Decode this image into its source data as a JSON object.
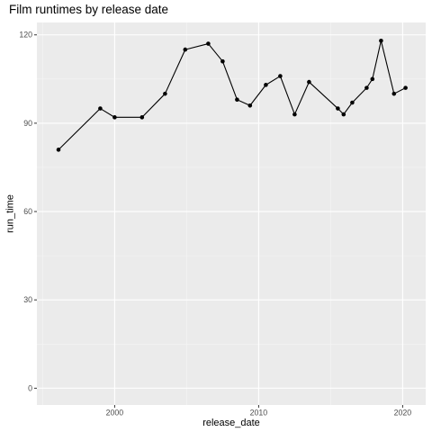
{
  "chart_data": {
    "type": "line",
    "title": "Film runtimes by release date",
    "xlabel": "release_date",
    "ylabel": "run_time",
    "xlim": [
      1994.6,
      2021.6
    ],
    "ylim": [
      -5.7,
      124.2
    ],
    "x_ticks": [
      2000,
      2010,
      2020
    ],
    "x_tick_labels": [
      "2000",
      "2010",
      "2020"
    ],
    "x_minor_ticks": [
      1995,
      2005,
      2015
    ],
    "y_ticks": [
      0,
      30,
      60,
      90,
      120
    ],
    "y_tick_labels": [
      "0",
      "30",
      "60",
      "90",
      "120"
    ],
    "y_minor_ticks": [
      15,
      45,
      75,
      105
    ],
    "grid": true,
    "legend": "none",
    "colors": {
      "panel_bg": "#ebebeb",
      "grid_major": "#ffffff",
      "grid_minor": "#f5f5f5",
      "line": "#000000",
      "point": "#000000",
      "tick": "#333333"
    },
    "series": [
      {
        "points": [
          {
            "x": 1996.1,
            "y": 81
          },
          {
            "x": 1999.0,
            "y": 95
          },
          {
            "x": 2000.0,
            "y": 92
          },
          {
            "x": 2001.9,
            "y": 92
          },
          {
            "x": 2003.5,
            "y": 100
          },
          {
            "x": 2004.9,
            "y": 115
          },
          {
            "x": 2006.5,
            "y": 117
          },
          {
            "x": 2007.5,
            "y": 111
          },
          {
            "x": 2008.5,
            "y": 98
          },
          {
            "x": 2009.4,
            "y": 96
          },
          {
            "x": 2010.5,
            "y": 103
          },
          {
            "x": 2011.5,
            "y": 106
          },
          {
            "x": 2012.5,
            "y": 93
          },
          {
            "x": 2013.5,
            "y": 104
          },
          {
            "x": 2015.5,
            "y": 95
          },
          {
            "x": 2015.9,
            "y": 93
          },
          {
            "x": 2016.5,
            "y": 97
          },
          {
            "x": 2017.5,
            "y": 102
          },
          {
            "x": 2017.9,
            "y": 105
          },
          {
            "x": 2018.5,
            "y": 118
          },
          {
            "x": 2019.4,
            "y": 100
          },
          {
            "x": 2020.2,
            "y": 102
          }
        ]
      }
    ]
  }
}
